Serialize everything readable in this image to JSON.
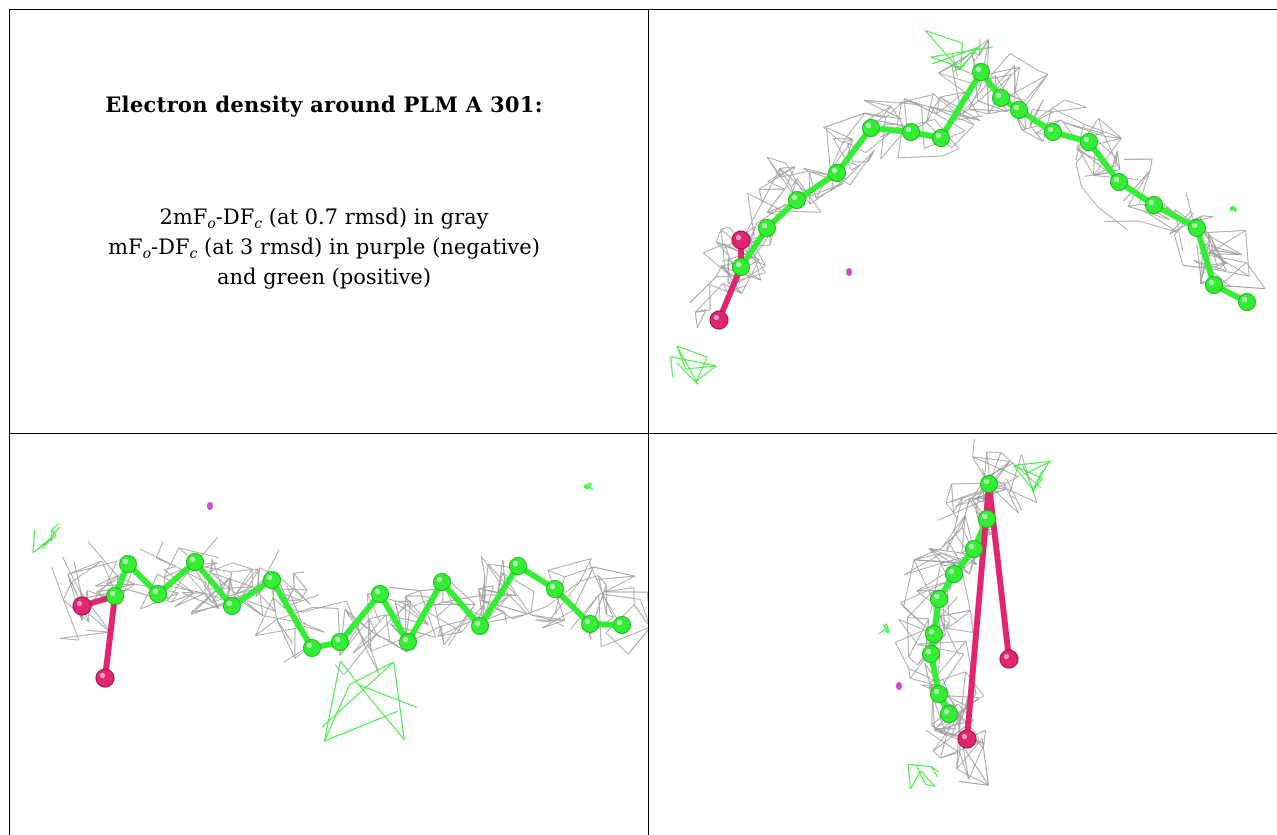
{
  "caption": {
    "title": "Electron density around PLM A 301:",
    "line1": {
      "a": "2mF",
      "sub1": "o",
      "b": "-DF",
      "sub2": "c",
      "c": " (at 0.7 rmsd) in gray"
    },
    "line2": {
      "a": "mF",
      "sub1": "o",
      "b": "-DF",
      "sub2": "c",
      "c": " (at 3 rmsd) in purple (negative)"
    },
    "line3": "and green (positive)"
  },
  "colors": {
    "mesh_2fofc": "#9a9a9a",
    "carbon": "#33ee33",
    "oxygen": "#e0266e",
    "positive_density": "#44ee44",
    "negative_density": "#c020c0"
  },
  "panels": [
    {
      "id": "view-1",
      "description_icon": "ligand-model"
    },
    {
      "id": "view-2",
      "description_icon": "ligand-model"
    },
    {
      "id": "view-3",
      "description_icon": "ligand-model"
    }
  ]
}
